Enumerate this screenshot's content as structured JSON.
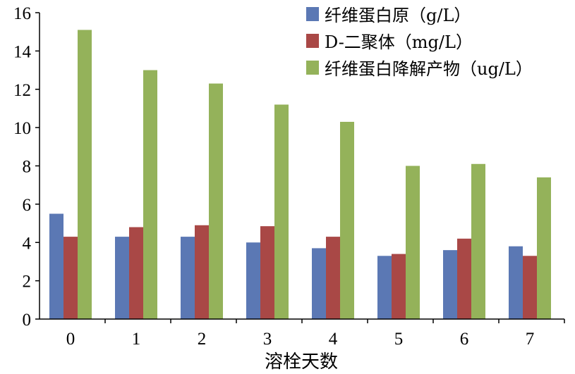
{
  "chart_data": {
    "type": "bar",
    "categories": [
      "0",
      "1",
      "2",
      "3",
      "4",
      "5",
      "6",
      "7"
    ],
    "series": [
      {
        "name": "纤维蛋白原（g/L）",
        "color": "#5b78b4",
        "values": [
          5.5,
          4.3,
          4.3,
          4.0,
          3.7,
          3.3,
          3.6,
          3.8
        ]
      },
      {
        "name": "D-二聚体（mg/L）",
        "color": "#a94846",
        "values": [
          4.3,
          4.8,
          4.9,
          4.85,
          4.3,
          3.4,
          4.2,
          3.3
        ]
      },
      {
        "name": "纤维蛋白降解产物（ug/L）",
        "color": "#94b25a",
        "values": [
          15.1,
          13.0,
          12.3,
          11.2,
          10.3,
          8.0,
          8.1,
          7.4
        ]
      }
    ],
    "xlabel": "溶栓天数",
    "ylabel": "",
    "ylim": [
      0,
      16
    ],
    "yticks": [
      0,
      2,
      4,
      6,
      8,
      10,
      12,
      14,
      16
    ],
    "grid": false,
    "legend_position": "top-right"
  }
}
